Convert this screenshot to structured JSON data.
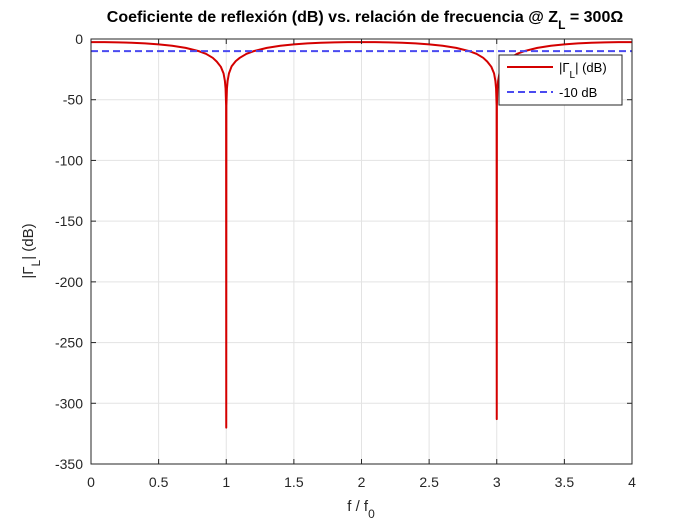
{
  "chart_data": {
    "type": "line",
    "title": {
      "main": "Coeficiente de reflexión (dB) vs. relación de frecuencia @ Z",
      "sub": "L",
      "tail": " = 300Ω"
    },
    "xlabel": {
      "main": "f / f",
      "sub": "0"
    },
    "ylabel": {
      "pre": "|Γ",
      "sub": "L",
      "post": "| (dB)"
    },
    "xlim": [
      0,
      4
    ],
    "ylim": [
      -350,
      0
    ],
    "xticks": [
      0,
      0.5,
      1,
      1.5,
      2,
      2.5,
      3,
      3.5,
      4
    ],
    "xtick_labels": [
      "0",
      "0.5",
      "1",
      "1.5",
      "2",
      "2.5",
      "3",
      "3.5",
      "4"
    ],
    "yticks": [
      0,
      -50,
      -100,
      -150,
      -200,
      -250,
      -300,
      -350
    ],
    "ytick_labels": [
      "0",
      "-50",
      "-100",
      "-150",
      "-200",
      "-250",
      "-300",
      "-350"
    ],
    "grid": true,
    "legend_position": "top-right",
    "series": [
      {
        "name": "|ΓL| (dB)",
        "legend": {
          "pre": "|Γ",
          "sub": "L",
          "post": "| (dB)"
        },
        "color": "#d40000",
        "style": "solid",
        "x": [
          0,
          0.1,
          0.2,
          0.3,
          0.4,
          0.5,
          0.6,
          0.7,
          0.8,
          0.85,
          0.9,
          0.93,
          0.96,
          0.98,
          0.99,
          0.995,
          0.999,
          1.0,
          1.001,
          1.005,
          1.01,
          1.02,
          1.04,
          1.07,
          1.1,
          1.15,
          1.2,
          1.3,
          1.4,
          1.5,
          1.6,
          1.7,
          1.8,
          1.9,
          2.0,
          2.1,
          2.2,
          2.3,
          2.4,
          2.5,
          2.6,
          2.7,
          2.8,
          2.85,
          2.9,
          2.93,
          2.96,
          2.98,
          2.99,
          2.995,
          2.999,
          3.0,
          3.001,
          3.005,
          3.01,
          3.02,
          3.04,
          3.07,
          3.1,
          3.15,
          3.2,
          3.3,
          3.4,
          3.5,
          3.6,
          3.7,
          3.8,
          3.9,
          4.0
        ],
        "y": [
          -2.55,
          -2.6,
          -2.8,
          -3.1,
          -3.6,
          -4.4,
          -5.6,
          -7.3,
          -10.1,
          -12.2,
          -15.5,
          -18.6,
          -22.9,
          -28.3,
          -34.6,
          -40.8,
          -54.8,
          -320,
          -54.8,
          -40.8,
          -34.6,
          -28.3,
          -22.4,
          -18.2,
          -15.5,
          -12.2,
          -10.1,
          -7.3,
          -5.6,
          -4.4,
          -3.6,
          -3.1,
          -2.8,
          -2.6,
          -2.55,
          -2.6,
          -2.8,
          -3.1,
          -3.6,
          -4.4,
          -5.6,
          -7.3,
          -10.1,
          -12.2,
          -15.5,
          -18.6,
          -22.9,
          -28.3,
          -34.6,
          -40.8,
          -54.8,
          -313,
          -54.8,
          -40.8,
          -34.6,
          -28.3,
          -22.4,
          -18.2,
          -15.5,
          -12.2,
          -10.1,
          -7.3,
          -5.6,
          -4.4,
          -3.6,
          -3.1,
          -2.8,
          -2.6,
          -2.55
        ]
      },
      {
        "name": "-10 dB",
        "legend": {
          "pre": "-10 dB",
          "sub": "",
          "post": ""
        },
        "color": "#4a4af0",
        "style": "dashed",
        "x": [
          0,
          4
        ],
        "y": [
          -10,
          -10
        ]
      }
    ]
  }
}
